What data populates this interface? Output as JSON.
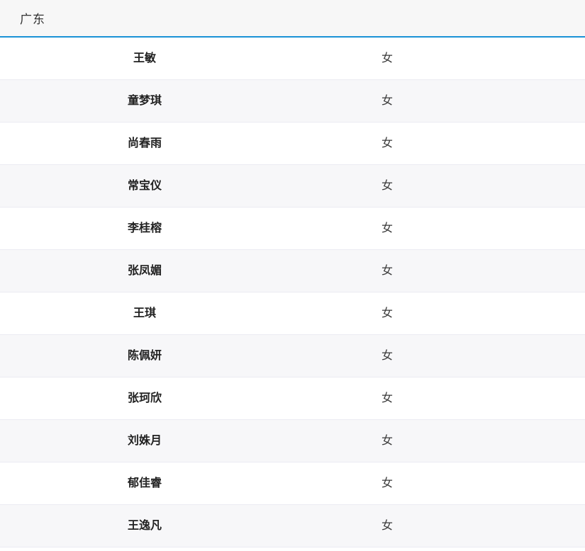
{
  "header": {
    "title": "广东"
  },
  "table": {
    "rows": [
      {
        "name": "王敏",
        "gender": "女"
      },
      {
        "name": "童梦琪",
        "gender": "女"
      },
      {
        "name": "尚春雨",
        "gender": "女"
      },
      {
        "name": "常宝仪",
        "gender": "女"
      },
      {
        "name": "李桂榕",
        "gender": "女"
      },
      {
        "name": "张凤媚",
        "gender": "女"
      },
      {
        "name": "王琪",
        "gender": "女"
      },
      {
        "name": "陈佩妍",
        "gender": "女"
      },
      {
        "name": "张珂欣",
        "gender": "女"
      },
      {
        "name": "刘姝月",
        "gender": "女"
      },
      {
        "name": "郁佳睿",
        "gender": "女"
      },
      {
        "name": "王逸凡",
        "gender": "女"
      }
    ]
  },
  "colors": {
    "accent_blue": "#1a92d6",
    "header_bg": "#f7f7f7",
    "stripe_bg": "#f7f7f9",
    "row_divider": "#ebebf2"
  }
}
